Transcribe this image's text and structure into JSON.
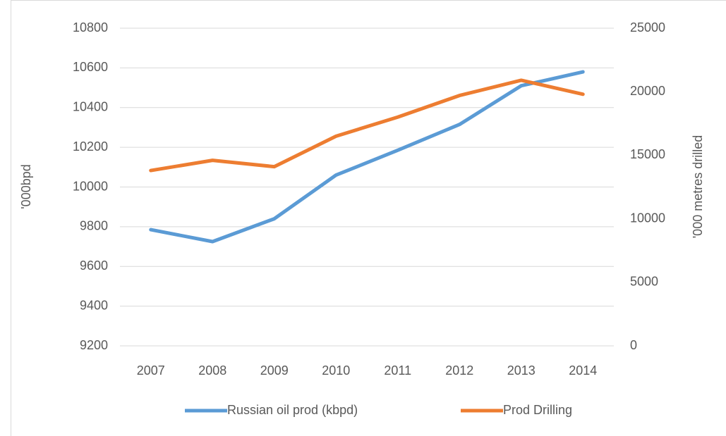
{
  "chart_data": {
    "type": "line",
    "x": [
      "2007",
      "2008",
      "2009",
      "2010",
      "2011",
      "2012",
      "2013",
      "2014"
    ],
    "series": [
      {
        "name": "Russian oil prod (kbpd)",
        "color": "#5b9bd5",
        "values": [
          9785,
          9725,
          9840,
          10060,
          10185,
          10315,
          10510,
          10580
        ]
      },
      {
        "name": "Prod Drilling",
        "color": "#ed7d31",
        "axis": "y2",
        "values": [
          13800,
          14600,
          14100,
          16500,
          18000,
          19700,
          20900,
          19800
        ]
      }
    ],
    "ylabel": "'000bpd",
    "y2label": "'000 metres drilled",
    "ylim": [
      9200,
      10800
    ],
    "yticks": [
      9200,
      9400,
      9600,
      9800,
      10000,
      10200,
      10400,
      10600,
      10800
    ],
    "y2lim": [
      0,
      25000
    ],
    "y2ticks": [
      0,
      5000,
      10000,
      15000,
      20000,
      25000
    ],
    "grid": true,
    "legend": "bottom"
  }
}
